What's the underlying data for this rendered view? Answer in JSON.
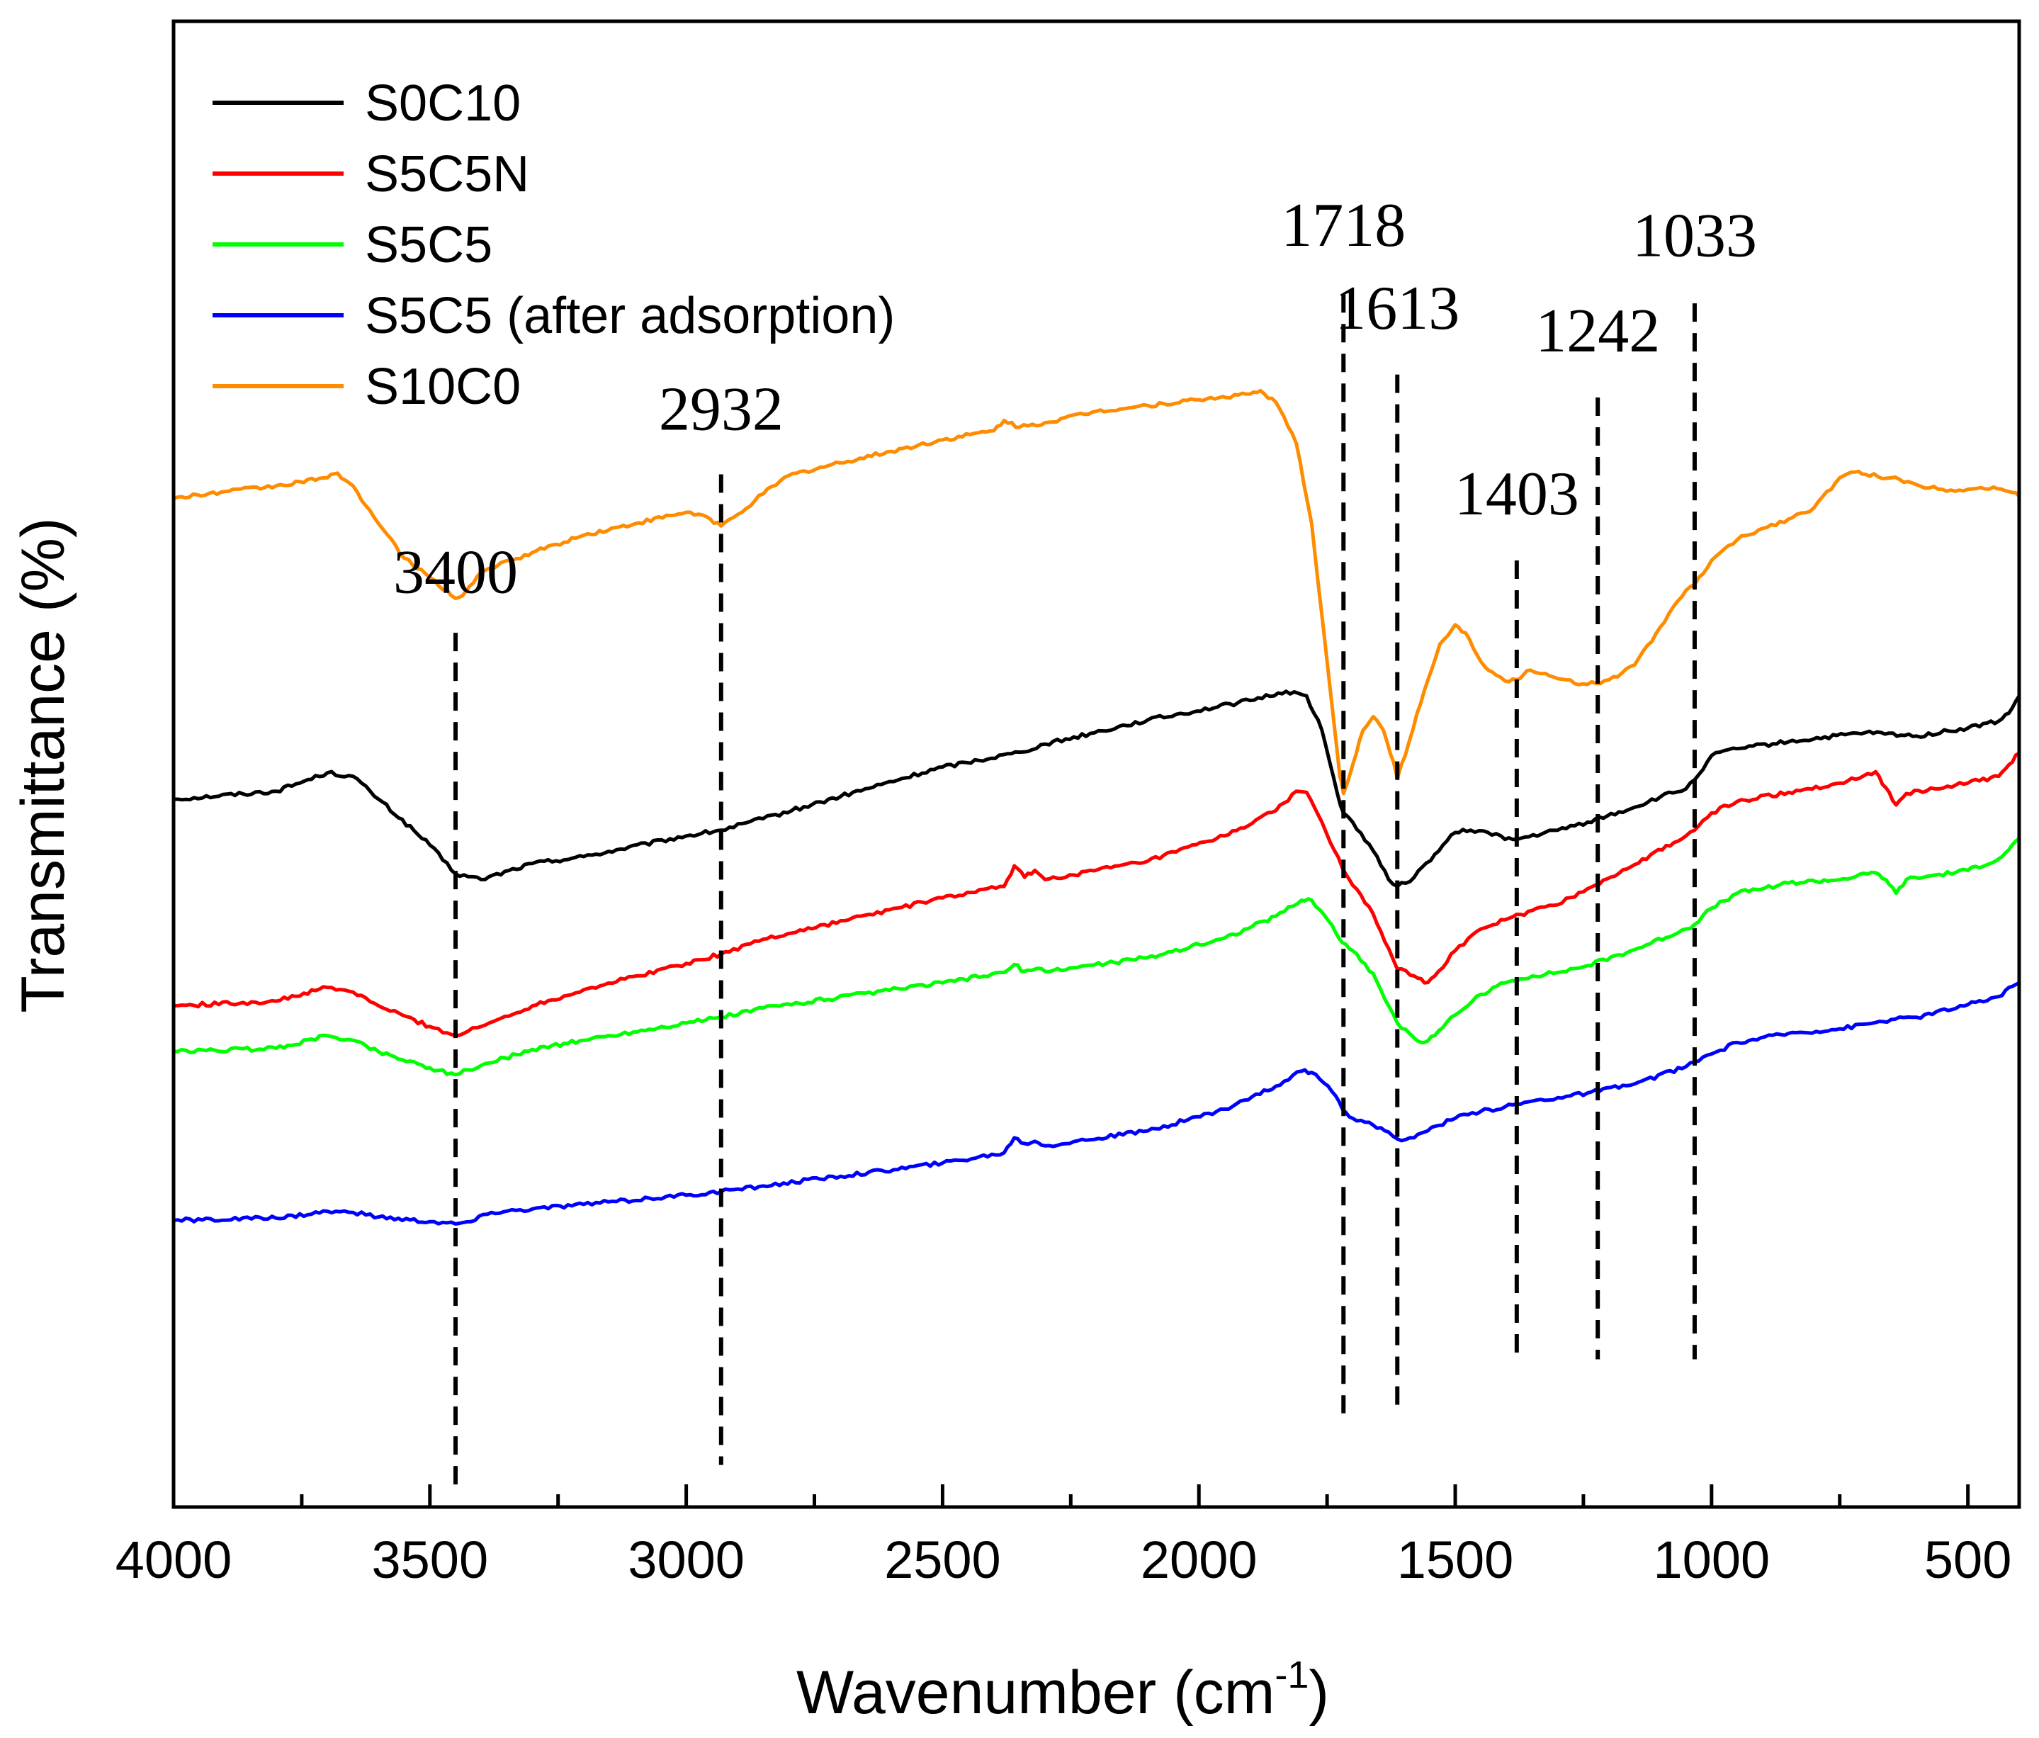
{
  "chart_data": {
    "type": "line",
    "title": "",
    "xlabel": "Wavenumber (cm",
    "xlabel_sup": "-1",
    "xlabel_end": ")",
    "ylabel": "Transmittance (%)",
    "xlim": [
      4000,
      400
    ],
    "x_reversed": true,
    "y_ticks_shown": false,
    "x_ticks": [
      4000,
      3500,
      3000,
      2500,
      2000,
      1500,
      1000,
      500
    ],
    "legend_position": "top-left",
    "series": [
      {
        "name": "S0C10",
        "color": "#000000",
        "points": [
          [
            4000,
            0.6
          ],
          [
            3800,
            0.607
          ],
          [
            3700,
            0.623
          ],
          [
            3650,
            0.62
          ],
          [
            3600,
            0.6
          ],
          [
            3500,
            0.56
          ],
          [
            3450,
            0.535
          ],
          [
            3400,
            0.53
          ],
          [
            3300,
            0.544
          ],
          [
            3200,
            0.55
          ],
          [
            3000,
            0.568
          ],
          [
            2932,
            0.573
          ],
          [
            2850,
            0.583
          ],
          [
            2500,
            0.628
          ],
          [
            2350,
            0.641
          ],
          [
            2300,
            0.648
          ],
          [
            2100,
            0.669
          ],
          [
            1900,
            0.686
          ],
          [
            1830,
            0.694
          ],
          [
            1790,
            0.69
          ],
          [
            1760,
            0.66
          ],
          [
            1730,
            0.605
          ],
          [
            1718,
            0.588
          ],
          [
            1700,
            0.58
          ],
          [
            1660,
            0.555
          ],
          [
            1630,
            0.53
          ],
          [
            1613,
            0.524
          ],
          [
            1580,
            0.532
          ],
          [
            1540,
            0.552
          ],
          [
            1500,
            0.571
          ],
          [
            1470,
            0.573
          ],
          [
            1420,
            0.57
          ],
          [
            1403,
            0.565
          ],
          [
            1380,
            0.565
          ],
          [
            1300,
            0.573
          ],
          [
            1242,
            0.58
          ],
          [
            1150,
            0.593
          ],
          [
            1100,
            0.602
          ],
          [
            1050,
            0.609
          ],
          [
            1033,
            0.617
          ],
          [
            1000,
            0.638
          ],
          [
            950,
            0.644
          ],
          [
            850,
            0.65
          ],
          [
            700,
            0.658
          ],
          [
            600,
            0.655
          ],
          [
            500,
            0.662
          ],
          [
            440,
            0.668
          ],
          [
            420,
            0.675
          ],
          [
            400,
            0.69
          ]
        ]
      },
      {
        "name": "S5C5N",
        "color": "#ff0000",
        "points": [
          [
            4000,
            0.42
          ],
          [
            3800,
            0.424
          ],
          [
            3700,
            0.436
          ],
          [
            3650,
            0.432
          ],
          [
            3600,
            0.42
          ],
          [
            3500,
            0.402
          ],
          [
            3450,
            0.394
          ],
          [
            3400,
            0.402
          ],
          [
            3300,
            0.42
          ],
          [
            3200,
            0.434
          ],
          [
            3000,
            0.457
          ],
          [
            2932,
            0.465
          ],
          [
            2850,
            0.478
          ],
          [
            2500,
            0.514
          ],
          [
            2380,
            0.524
          ],
          [
            2360,
            0.542
          ],
          [
            2340,
            0.532
          ],
          [
            2320,
            0.538
          ],
          [
            2300,
            0.53
          ],
          [
            2100,
            0.546
          ],
          [
            1950,
            0.568
          ],
          [
            1850,
            0.59
          ],
          [
            1810,
            0.607
          ],
          [
            1790,
            0.606
          ],
          [
            1760,
            0.58
          ],
          [
            1720,
            0.54
          ],
          [
            1700,
            0.525
          ],
          [
            1660,
            0.5
          ],
          [
            1630,
            0.47
          ],
          [
            1613,
            0.452
          ],
          [
            1580,
            0.446
          ],
          [
            1560,
            0.44
          ],
          [
            1540,
            0.446
          ],
          [
            1500,
            0.468
          ],
          [
            1450,
            0.487
          ],
          [
            1403,
            0.495
          ],
          [
            1350,
            0.503
          ],
          [
            1300,
            0.508
          ],
          [
            1242,
            0.522
          ],
          [
            1150,
            0.543
          ],
          [
            1050,
            0.568
          ],
          [
            1033,
            0.573
          ],
          [
            1000,
            0.588
          ],
          [
            950,
            0.598
          ],
          [
            850,
            0.606
          ],
          [
            750,
            0.614
          ],
          [
            680,
            0.624
          ],
          [
            660,
            0.61
          ],
          [
            640,
            0.595
          ],
          [
            620,
            0.605
          ],
          [
            500,
            0.614
          ],
          [
            440,
            0.62
          ],
          [
            420,
            0.63
          ],
          [
            400,
            0.64
          ]
        ]
      },
      {
        "name": "S5C5",
        "color": "#00ff00",
        "points": [
          [
            4000,
            0.38
          ],
          [
            3800,
            0.383
          ],
          [
            3700,
            0.394
          ],
          [
            3650,
            0.39
          ],
          [
            3600,
            0.38
          ],
          [
            3500,
            0.366
          ],
          [
            3450,
            0.36
          ],
          [
            3400,
            0.368
          ],
          [
            3300,
            0.382
          ],
          [
            3200,
            0.39
          ],
          [
            3000,
            0.405
          ],
          [
            2932,
            0.41
          ],
          [
            2850,
            0.418
          ],
          [
            2500,
            0.44
          ],
          [
            2380,
            0.449
          ],
          [
            2360,
            0.456
          ],
          [
            2340,
            0.45
          ],
          [
            2320,
            0.452
          ],
          [
            2300,
            0.45
          ],
          [
            2100,
            0.462
          ],
          [
            1950,
            0.479
          ],
          [
            1850,
            0.498
          ],
          [
            1800,
            0.512
          ],
          [
            1780,
            0.512
          ],
          [
            1740,
            0.49
          ],
          [
            1720,
            0.475
          ],
          [
            1700,
            0.468
          ],
          [
            1660,
            0.448
          ],
          [
            1630,
            0.42
          ],
          [
            1613,
            0.405
          ],
          [
            1580,
            0.392
          ],
          [
            1560,
            0.388
          ],
          [
            1540,
            0.394
          ],
          [
            1500,
            0.412
          ],
          [
            1450,
            0.43
          ],
          [
            1403,
            0.44
          ],
          [
            1350,
            0.446
          ],
          [
            1300,
            0.449
          ],
          [
            1242,
            0.455
          ],
          [
            1150,
            0.469
          ],
          [
            1050,
            0.487
          ],
          [
            1033,
            0.491
          ],
          [
            1000,
            0.505
          ],
          [
            950,
            0.518
          ],
          [
            850,
            0.527
          ],
          [
            750,
            0.53
          ],
          [
            680,
            0.536
          ],
          [
            660,
            0.53
          ],
          [
            640,
            0.518
          ],
          [
            620,
            0.53
          ],
          [
            500,
            0.538
          ],
          [
            440,
            0.548
          ],
          [
            420,
            0.556
          ],
          [
            400,
            0.566
          ]
        ]
      },
      {
        "name": "S5C5 (after adsorption)",
        "color": "#0000ff",
        "points": [
          [
            4000,
            0.233
          ],
          [
            3800,
            0.235
          ],
          [
            3700,
            0.241
          ],
          [
            3650,
            0.24
          ],
          [
            3600,
            0.236
          ],
          [
            3500,
            0.232
          ],
          [
            3450,
            0.23
          ],
          [
            3420,
            0.232
          ],
          [
            3380,
            0.24
          ],
          [
            3300,
            0.243
          ],
          [
            3200,
            0.247
          ],
          [
            3000,
            0.255
          ],
          [
            2932,
            0.258
          ],
          [
            2850,
            0.263
          ],
          [
            2500,
            0.283
          ],
          [
            2380,
            0.292
          ],
          [
            2360,
            0.305
          ],
          [
            2340,
            0.3
          ],
          [
            2320,
            0.302
          ],
          [
            2300,
            0.298
          ],
          [
            2100,
            0.311
          ],
          [
            1950,
            0.33
          ],
          [
            1850,
            0.35
          ],
          [
            1800,
            0.363
          ],
          [
            1780,
            0.362
          ],
          [
            1740,
            0.345
          ],
          [
            1720,
            0.33
          ],
          [
            1700,
            0.322
          ],
          [
            1660,
            0.316
          ],
          [
            1630,
            0.31
          ],
          [
            1613,
            0.304
          ],
          [
            1580,
            0.305
          ],
          [
            1560,
            0.31
          ],
          [
            1540,
            0.315
          ],
          [
            1500,
            0.322
          ],
          [
            1450,
            0.328
          ],
          [
            1403,
            0.332
          ],
          [
            1350,
            0.337
          ],
          [
            1300,
            0.34
          ],
          [
            1242,
            0.344
          ],
          [
            1150,
            0.352
          ],
          [
            1050,
            0.367
          ],
          [
            1033,
            0.371
          ],
          [
            1000,
            0.378
          ],
          [
            950,
            0.388
          ],
          [
            850,
            0.396
          ],
          [
            750,
            0.4
          ],
          [
            650,
            0.408
          ],
          [
            600,
            0.41
          ],
          [
            500,
            0.421
          ],
          [
            440,
            0.428
          ],
          [
            420,
            0.436
          ],
          [
            400,
            0.44
          ]
        ]
      },
      {
        "name": "S10C0",
        "color": "#ff8c00",
        "points": [
          [
            4000,
            0.862
          ],
          [
            3900,
            0.868
          ],
          [
            3800,
            0.873
          ],
          [
            3700,
            0.88
          ],
          [
            3680,
            0.884
          ],
          [
            3650,
            0.873
          ],
          [
            3600,
            0.84
          ],
          [
            3550,
            0.81
          ],
          [
            3500,
            0.793
          ],
          [
            3450,
            0.775
          ],
          [
            3430,
            0.781
          ],
          [
            3400,
            0.798
          ],
          [
            3300,
            0.815
          ],
          [
            3200,
            0.83
          ],
          [
            3100,
            0.84
          ],
          [
            3000,
            0.85
          ],
          [
            2960,
            0.846
          ],
          [
            2932,
            0.838
          ],
          [
            2900,
            0.848
          ],
          [
            2850,
            0.866
          ],
          [
            2800,
            0.882
          ],
          [
            2700,
            0.893
          ],
          [
            2600,
            0.903
          ],
          [
            2500,
            0.913
          ],
          [
            2400,
            0.921
          ],
          [
            2380,
            0.93
          ],
          [
            2350,
            0.924
          ],
          [
            2300,
            0.928
          ],
          [
            2200,
            0.938
          ],
          [
            2100,
            0.943
          ],
          [
            2000,
            0.948
          ],
          [
            1900,
            0.953
          ],
          [
            1880,
            0.956
          ],
          [
            1850,
            0.946
          ],
          [
            1810,
            0.91
          ],
          [
            1780,
            0.84
          ],
          [
            1760,
            0.76
          ],
          [
            1740,
            0.68
          ],
          [
            1725,
            0.62
          ],
          [
            1718,
            0.605
          ],
          [
            1700,
            0.63
          ],
          [
            1680,
            0.66
          ],
          [
            1660,
            0.672
          ],
          [
            1640,
            0.66
          ],
          [
            1620,
            0.632
          ],
          [
            1613,
            0.618
          ],
          [
            1590,
            0.65
          ],
          [
            1560,
            0.695
          ],
          [
            1530,
            0.735
          ],
          [
            1500,
            0.752
          ],
          [
            1480,
            0.745
          ],
          [
            1450,
            0.72
          ],
          [
            1420,
            0.708
          ],
          [
            1403,
            0.703
          ],
          [
            1380,
            0.704
          ],
          [
            1360,
            0.712
          ],
          [
            1340,
            0.71
          ],
          [
            1300,
            0.705
          ],
          [
            1242,
            0.7
          ],
          [
            1200,
            0.704
          ],
          [
            1150,
            0.717
          ],
          [
            1100,
            0.75
          ],
          [
            1050,
            0.782
          ],
          [
            1033,
            0.787
          ],
          [
            1000,
            0.808
          ],
          [
            950,
            0.826
          ],
          [
            900,
            0.836
          ],
          [
            850,
            0.844
          ],
          [
            800,
            0.854
          ],
          [
            750,
            0.88
          ],
          [
            720,
            0.885
          ],
          [
            700,
            0.883
          ],
          [
            650,
            0.88
          ],
          [
            600,
            0.874
          ],
          [
            550,
            0.87
          ],
          [
            500,
            0.87
          ],
          [
            450,
            0.872
          ],
          [
            420,
            0.868
          ],
          [
            400,
            0.864
          ]
        ]
      }
    ],
    "annotations": [
      {
        "label": "3400",
        "x": 3450,
        "y_top": 0.745,
        "y_bottom": 0.0,
        "label_y": 0.78
      },
      {
        "label": "2932",
        "x": 2932,
        "y_top": 0.883,
        "y_bottom": 0.02,
        "label_y": 0.922
      },
      {
        "label": "1718",
        "x": 1718,
        "y_top": 1.04,
        "y_bottom": 0.065,
        "label_y": 1.082
      },
      {
        "label": "1613",
        "x": 1613,
        "y_top": 0.97,
        "y_bottom": 0.065,
        "label_y": 1.01
      },
      {
        "label": "1403",
        "x": 1380,
        "y_top": 0.808,
        "y_bottom": 0.112,
        "label_y": 0.848
      },
      {
        "label": "1242",
        "x": 1222,
        "y_top": 0.95,
        "y_bottom": 0.112,
        "label_y": 0.99
      },
      {
        "label": "1033",
        "x": 1033,
        "y_top": 1.032,
        "y_bottom": 0.112,
        "label_y": 1.073
      }
    ]
  }
}
